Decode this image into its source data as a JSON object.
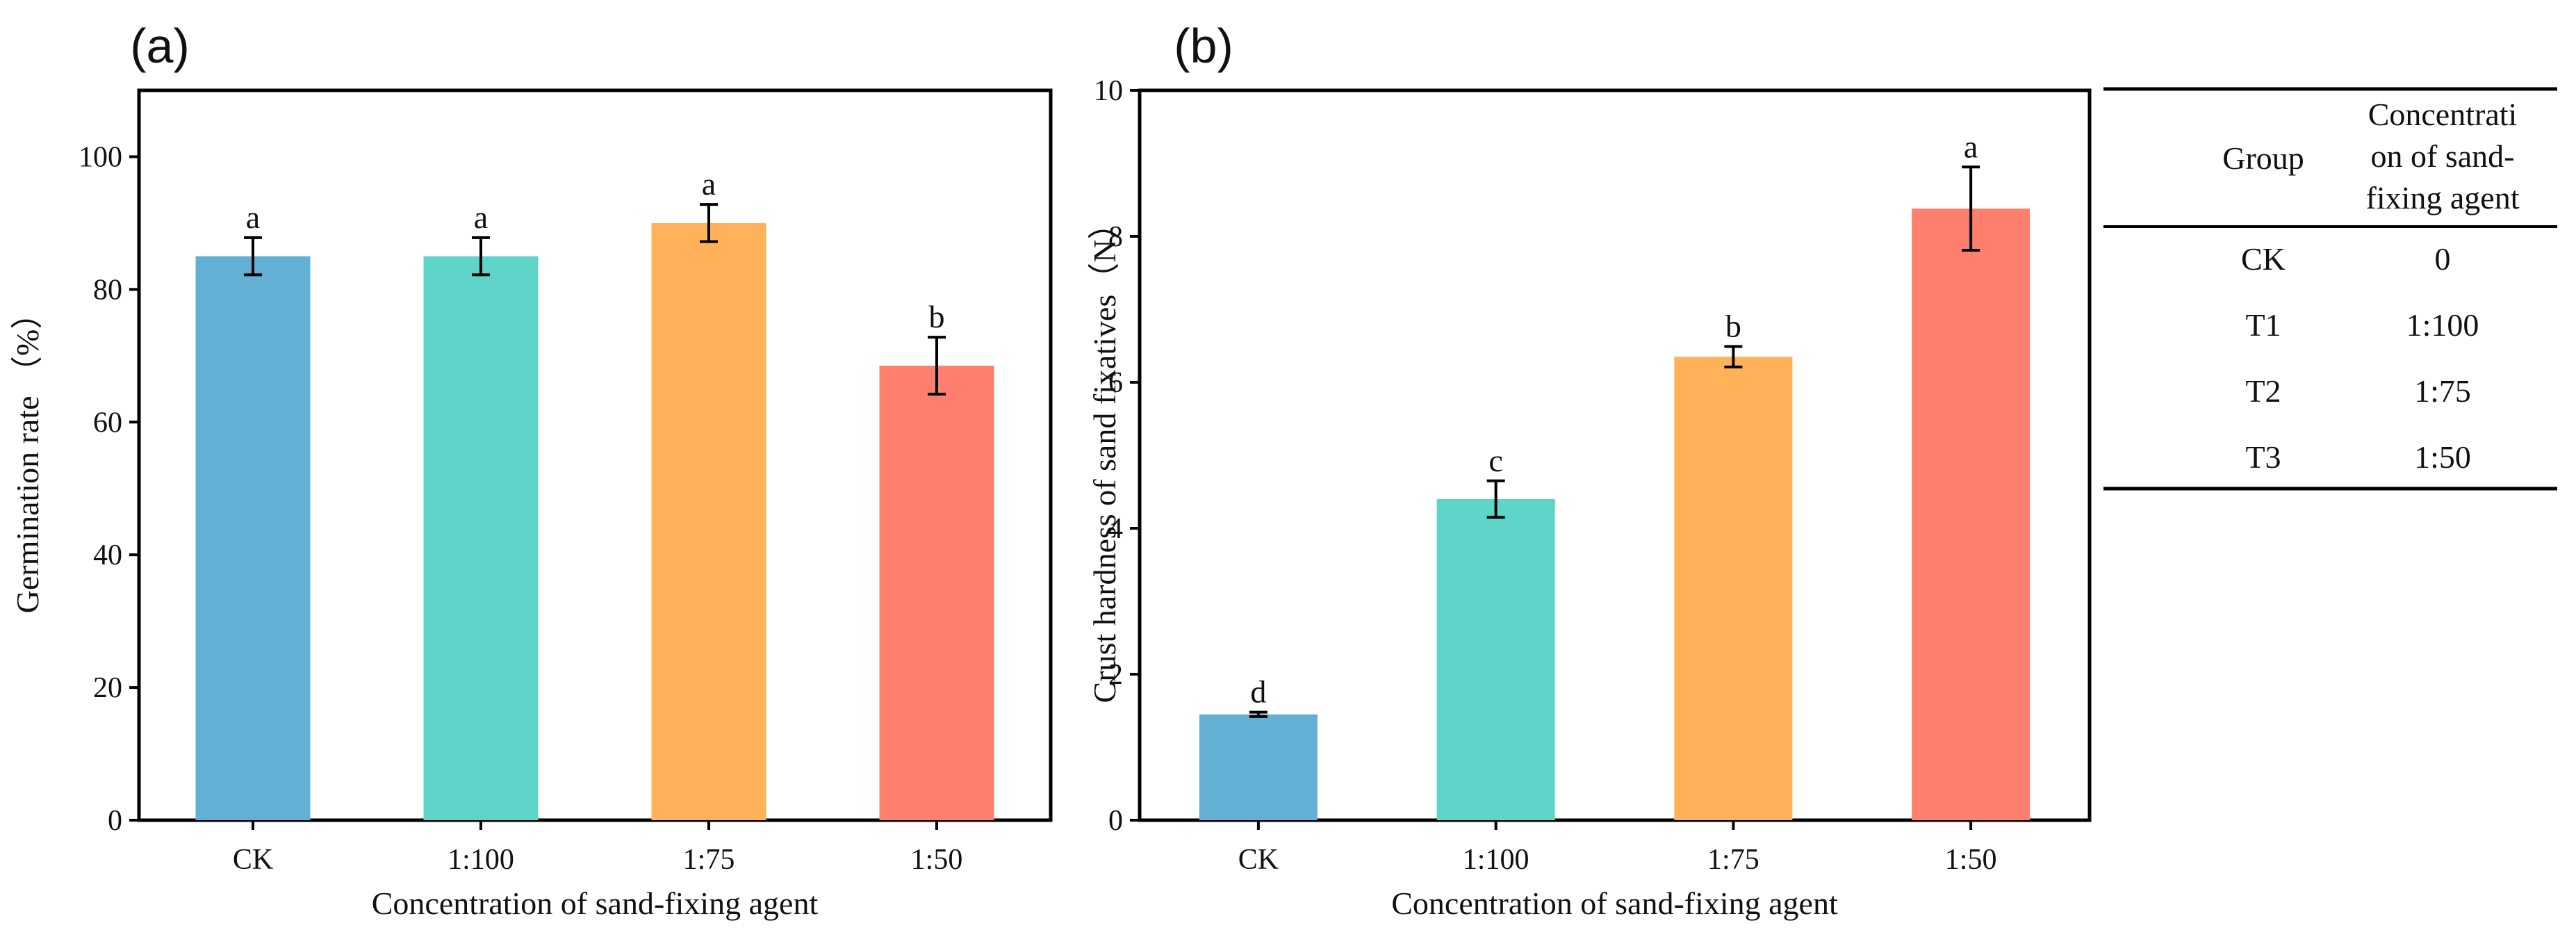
{
  "chart_data": [
    {
      "panel_label": "(a)",
      "type": "bar",
      "categories": [
        "CK",
        "1:100",
        "1:75",
        "1:50"
      ],
      "values": [
        85,
        85,
        90,
        68.5
      ],
      "errors": [
        2.8,
        2.8,
        2.8,
        4.3
      ],
      "significance": [
        "a",
        "a",
        "a",
        "b"
      ],
      "colors": [
        "#62B1D4",
        "#5FD4C8",
        "#FFB25A",
        "#FF7F6F"
      ],
      "xlabel": "Concentration of sand-fixing agent",
      "ylabel": "Germination rate （%）",
      "ylim": [
        0,
        110
      ],
      "yticks": [
        0,
        20,
        40,
        60,
        80,
        100
      ],
      "grid": false
    },
    {
      "panel_label": "(b)",
      "type": "bar",
      "categories": [
        "CK",
        "1:100",
        "1:75",
        "1:50"
      ],
      "values": [
        1.45,
        4.4,
        6.35,
        8.38
      ],
      "errors": [
        0.03,
        0.25,
        0.14,
        0.57
      ],
      "significance": [
        "d",
        "c",
        "b",
        "a"
      ],
      "colors": [
        "#62B1D4",
        "#5FD4C8",
        "#FFB25A",
        "#FF7F6F"
      ],
      "xlabel": "Concentration of sand-fixing agent",
      "ylabel": "Crust hardness of sand fixatives（N）",
      "ylim": [
        0,
        10
      ],
      "yticks": [
        0,
        2,
        4,
        6,
        8,
        10
      ],
      "grid": false
    }
  ],
  "legend_table": {
    "header": [
      "Group",
      "Concentration of sand-fixing agent"
    ],
    "header_lines": [
      [
        "Group"
      ],
      [
        "Concentrati",
        "on of sand-",
        "fixing agent"
      ]
    ],
    "rows": [
      [
        "CK",
        "0"
      ],
      [
        "T1",
        "1:100"
      ],
      [
        "T2",
        "1:75"
      ],
      [
        "T3",
        "1:50"
      ]
    ]
  }
}
